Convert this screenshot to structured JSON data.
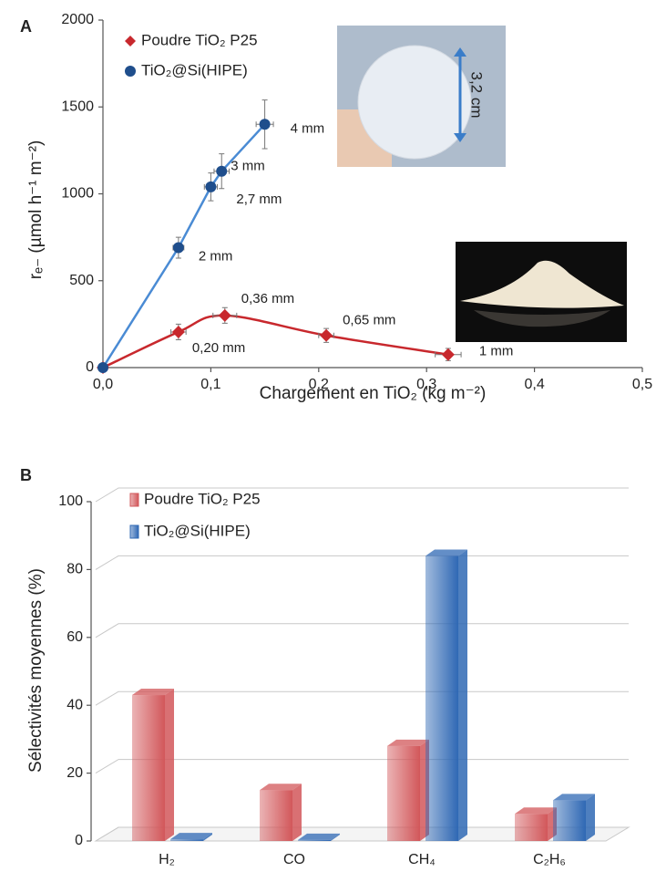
{
  "chart_data": [
    {
      "panel": "A",
      "type": "line",
      "xlabel": "Chargement en TiO₂ (kg m⁻²)",
      "ylabel": "rₑ₋ (µmol h⁻¹ m⁻²)",
      "xlim": [
        0,
        0.5
      ],
      "ylim": [
        0,
        2000
      ],
      "xticks": [
        {
          "value": 0,
          "label": "0,0"
        },
        {
          "value": 0.1,
          "label": "0,1"
        },
        {
          "value": 0.2,
          "label": "0,2"
        },
        {
          "value": 0.3,
          "label": "0,3"
        },
        {
          "value": 0.4,
          "label": "0,4"
        },
        {
          "value": 0.5,
          "label": "0,5"
        }
      ],
      "yticks": [
        0,
        500,
        1000,
        1500,
        2000
      ],
      "series": [
        {
          "name": "Poudre TiO₂ P25",
          "color": "#c8282d",
          "marker": "diamond",
          "curve": "smooth",
          "x": [
            0,
            0.07,
            0.113,
            0.207,
            0.32
          ],
          "values": [
            0,
            205,
            300,
            185,
            75
          ],
          "yerr": [
            0,
            45,
            45,
            40,
            35
          ],
          "xerr": [
            0,
            0.007,
            0.011,
            0.007,
            0.012
          ],
          "point_labels": [
            null,
            "0,20 mm",
            "0,36 mm",
            "0,65 mm",
            "1 mm"
          ]
        },
        {
          "name": "TiO₂@Si(HIPE)",
          "color": "#1f4e8c",
          "line_color": "#4a8bd4",
          "marker": "circle",
          "curve": "linear",
          "x": [
            0,
            0.07,
            0.1,
            0.11,
            0.15
          ],
          "values": [
            0,
            690,
            1040,
            1130,
            1400
          ],
          "yerr": [
            0,
            60,
            80,
            100,
            140
          ],
          "xerr": [
            0,
            0.005,
            0.006,
            0.007,
            0.008
          ],
          "point_labels": [
            null,
            "2 mm",
            "2,7 mm",
            "3 mm",
            "4 mm"
          ]
        }
      ],
      "image_labels": [
        "3,2 cm"
      ]
    },
    {
      "panel": "B",
      "type": "bar3d",
      "ylabel": "Sélectivités moyennes (%)",
      "categories": [
        "H₂",
        "CO",
        "CH₄",
        "C₂H₆"
      ],
      "ylim": [
        0,
        100
      ],
      "yticks": [
        0,
        20,
        40,
        60,
        80,
        100
      ],
      "series": [
        {
          "name": "Poudre TiO₂ P25",
          "color": "#d2575a",
          "values": [
            43,
            15,
            28,
            8
          ]
        },
        {
          "name": "TiO₂@Si(HIPE)",
          "color": "#2f68b4",
          "values": [
            0.5,
            0.3,
            84,
            12
          ]
        }
      ]
    }
  ]
}
